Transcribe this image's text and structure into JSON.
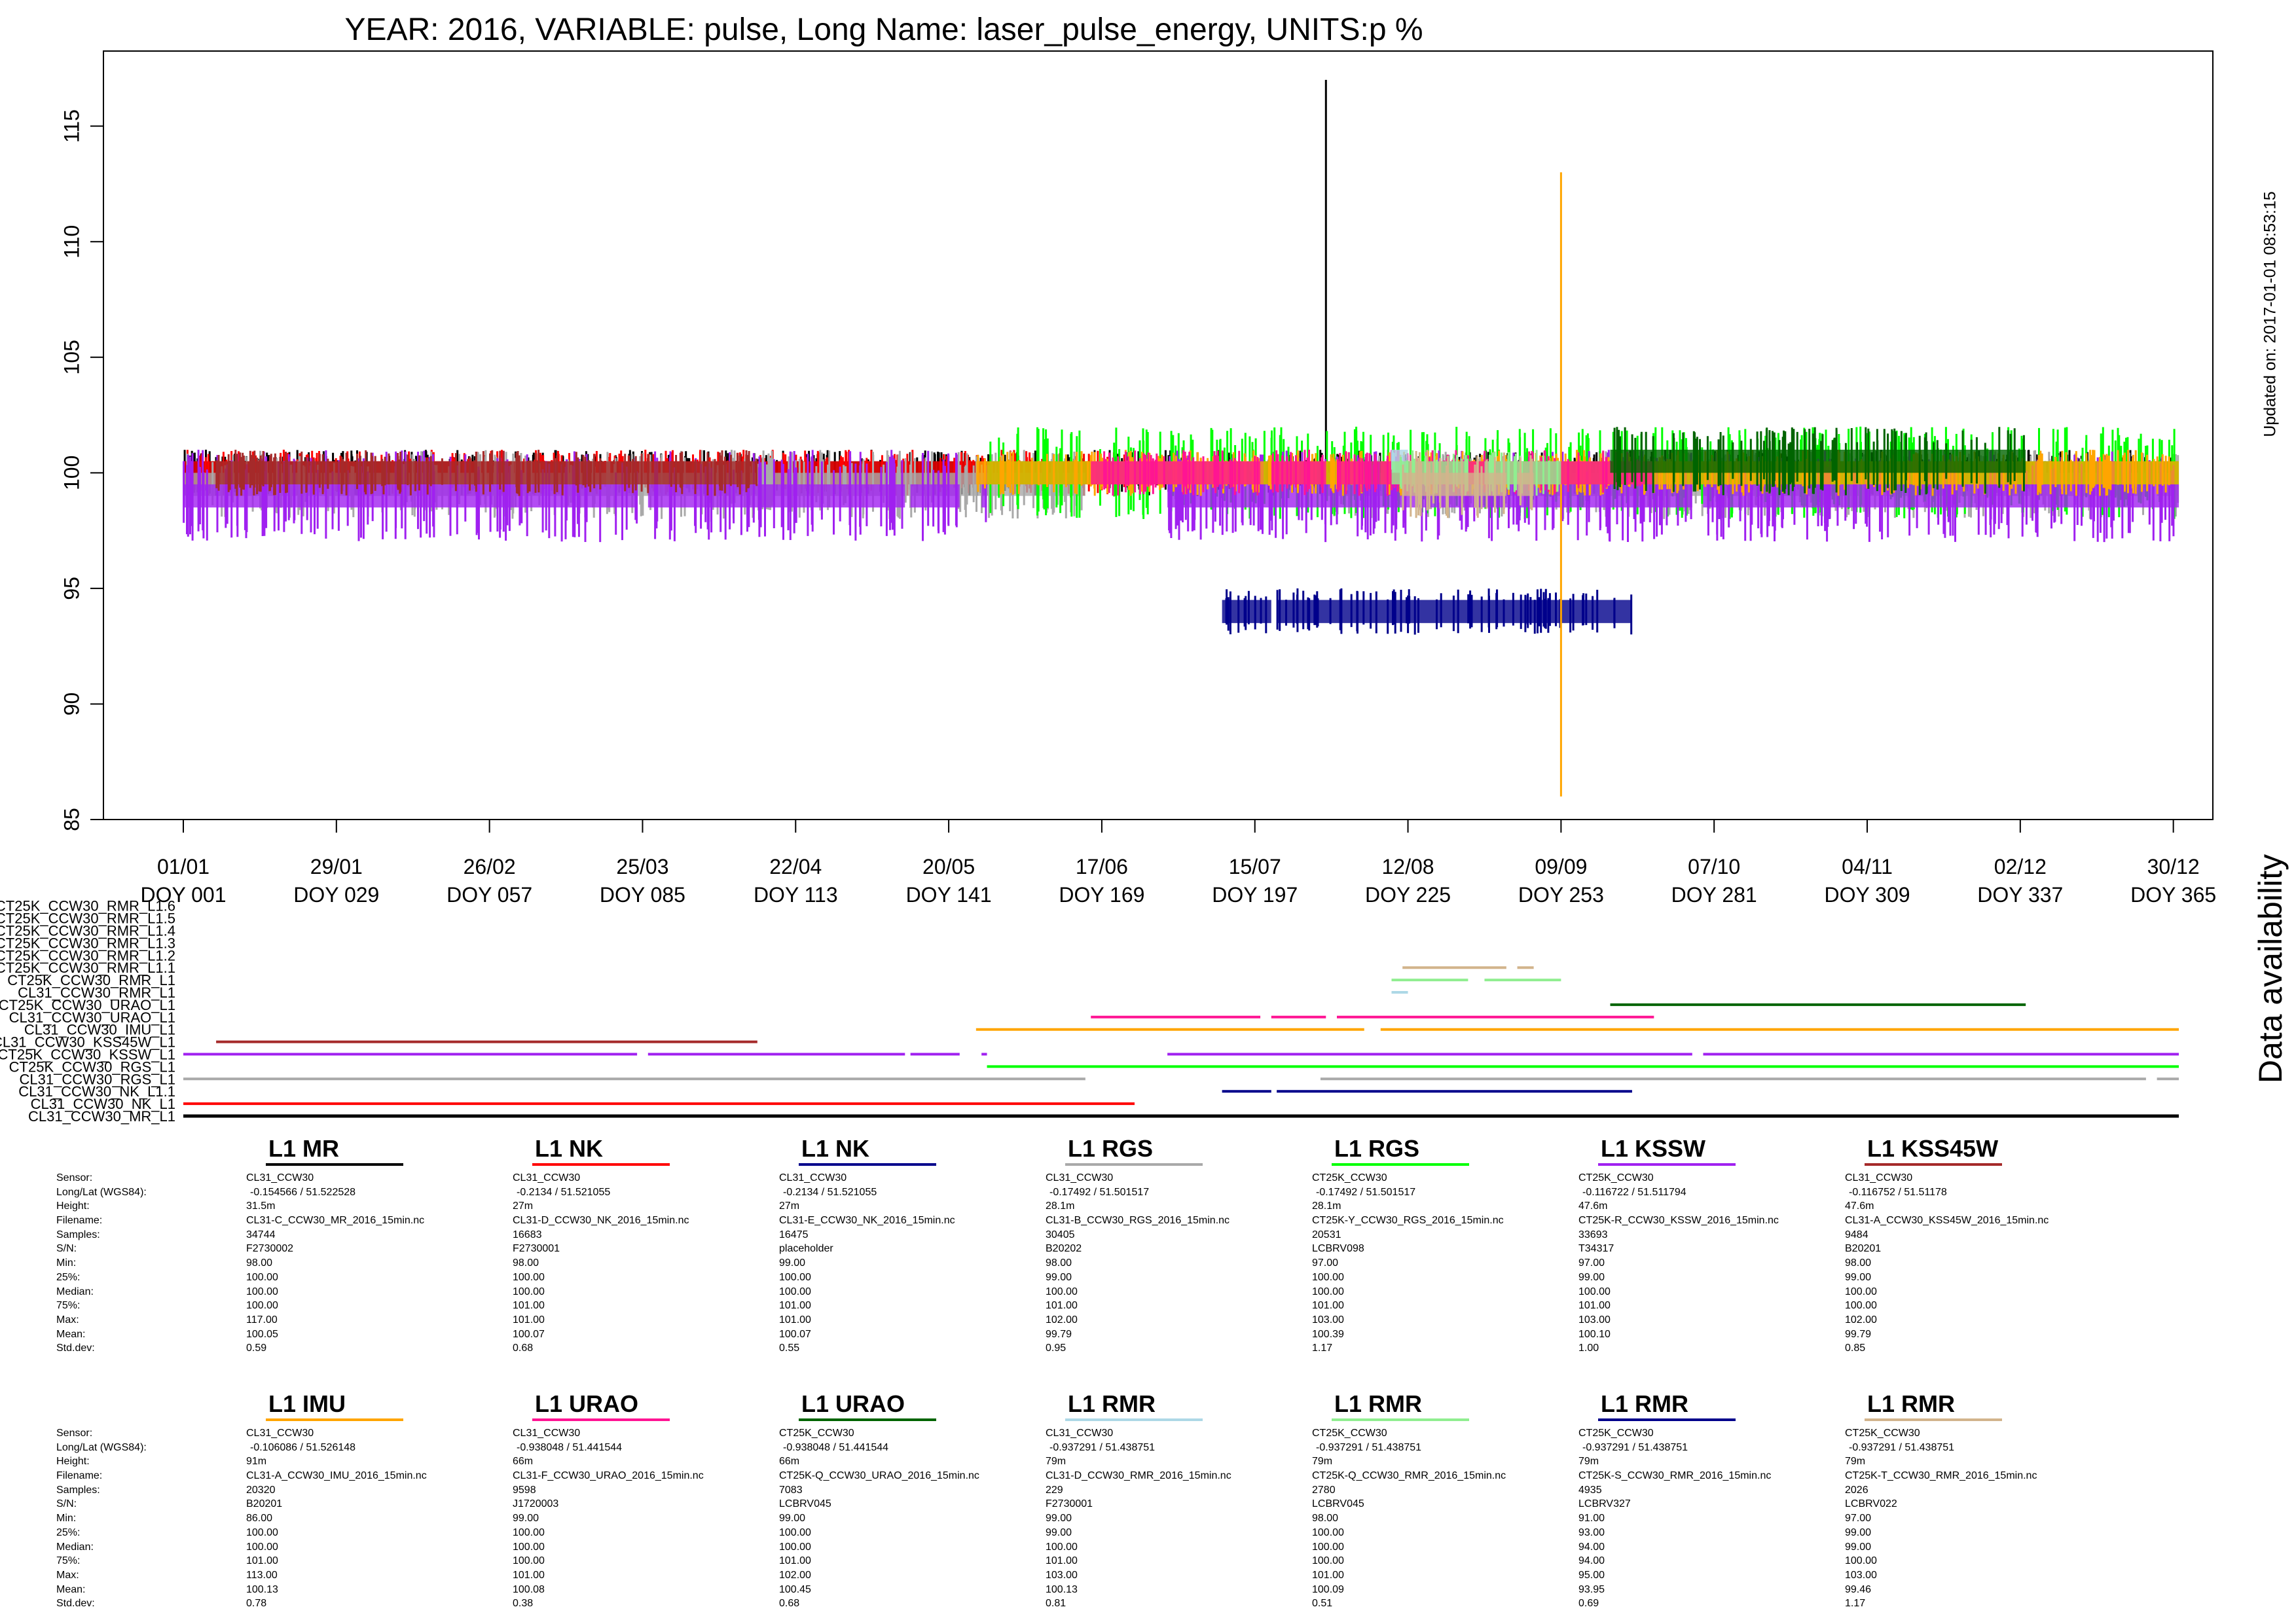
{
  "title": "YEAR: 2016, VARIABLE: pulse, Long Name: laser_pulse_energy, UNITS:p %",
  "updated": "Updated on: 2017-01-01 08:53:15",
  "availability_label": "Data availability",
  "chart_data": {
    "type": "line",
    "ylim": [
      85,
      117
    ],
    "yticks": [
      "85",
      "90",
      "95",
      "100",
      "105",
      "110",
      "115"
    ],
    "xlim": [
      1,
      366
    ],
    "xticks": [
      {
        "doy": 1,
        "date": "01/01",
        "label": "DOY 001"
      },
      {
        "doy": 29,
        "date": "29/01",
        "label": "DOY 029"
      },
      {
        "doy": 57,
        "date": "26/02",
        "label": "DOY 057"
      },
      {
        "doy": 85,
        "date": "25/03",
        "label": "DOY 085"
      },
      {
        "doy": 113,
        "date": "22/04",
        "label": "DOY 113"
      },
      {
        "doy": 141,
        "date": "20/05",
        "label": "DOY 141"
      },
      {
        "doy": 169,
        "date": "17/06",
        "label": "DOY 169"
      },
      {
        "doy": 197,
        "date": "15/07",
        "label": "DOY 197"
      },
      {
        "doy": 225,
        "date": "12/08",
        "label": "DOY 225"
      },
      {
        "doy": 253,
        "date": "09/09",
        "label": "DOY 253"
      },
      {
        "doy": 281,
        "date": "07/10",
        "label": "DOY 281"
      },
      {
        "doy": 309,
        "date": "04/11",
        "label": "DOY 309"
      },
      {
        "doy": 337,
        "date": "02/12",
        "label": "DOY 337"
      },
      {
        "doy": 365,
        "date": "30/12",
        "label": "DOY 365"
      }
    ],
    "series": [
      {
        "color": "#000000",
        "segments": [
          [
            1,
            366
          ]
        ],
        "low": 99,
        "high": 101,
        "spike": [
          210,
          99,
          117
        ]
      },
      {
        "color": "#ff0000",
        "segments": [
          [
            1,
            175
          ]
        ],
        "low": 99,
        "high": 101
      },
      {
        "color": "#00008b",
        "segments": [
          [
            191,
            200
          ],
          [
            201,
            266
          ]
        ],
        "low": 93,
        "high": 95
      },
      {
        "color": "#a9a9a9",
        "segments": [
          [
            1,
            166
          ],
          [
            209,
            360
          ],
          [
            362,
            366
          ]
        ],
        "low": 98,
        "high": 101
      },
      {
        "color": "#00ff00",
        "segments": [
          [
            148,
            366
          ]
        ],
        "low": 98,
        "high": 102
      },
      {
        "color": "#a020f0",
        "segments": [
          [
            1,
            84
          ],
          [
            86,
            133
          ],
          [
            134,
            143
          ],
          [
            147,
            148
          ],
          [
            181,
            277
          ],
          [
            279,
            366
          ]
        ],
        "low": 97,
        "high": 101
      },
      {
        "color": "#a52a2a",
        "segments": [
          [
            7,
            106
          ]
        ],
        "low": 99,
        "high": 101
      },
      {
        "color": "#ffa500",
        "segments": [
          [
            146,
            217
          ],
          [
            220,
            366
          ]
        ],
        "low": 99,
        "high": 101,
        "spike": [
          253,
          86,
          113
        ]
      },
      {
        "color": "#ff1493",
        "segments": [
          [
            167,
            198
          ],
          [
            200,
            210
          ],
          [
            212,
            270
          ]
        ],
        "low": 99,
        "high": 101
      },
      {
        "color": "#006400",
        "segments": [
          [
            262,
            338
          ]
        ],
        "low": 99,
        "high": 102
      },
      {
        "color": "#add8e6",
        "segments": [
          [
            222,
            225
          ]
        ],
        "low": 100,
        "high": 101
      },
      {
        "color": "#90ee90",
        "segments": [
          [
            222,
            236
          ],
          [
            239,
            253
          ]
        ],
        "low": 99,
        "high": 101
      },
      {
        "color": "#d2b48c",
        "segments": [
          [
            224,
            243
          ],
          [
            245,
            248
          ]
        ],
        "low": 98,
        "high": 101
      }
    ]
  },
  "availability": {
    "rows": [
      {
        "name": "CL31_CCW30_MR_L1",
        "color": "#000000"
      },
      {
        "name": "CL31_CCW30_NK_L1",
        "color": "#ff0000"
      },
      {
        "name": "CL31_CCW30_NK_L1.1",
        "color": "#00008b"
      },
      {
        "name": "CL31_CCW30_RGS_L1",
        "color": "#a9a9a9"
      },
      {
        "name": "CT25K_CCW30_RGS_L1",
        "color": "#00ff00"
      },
      {
        "name": "CT25K_CCW30_KSSW_L1",
        "color": "#a020f0"
      },
      {
        "name": "CL31_CCW30_KSS45W_L1",
        "color": "#a52a2a"
      },
      {
        "name": "CL31_CCW30_IMU_L1",
        "color": "#ffa500"
      },
      {
        "name": "CL31_CCW30_URAO_L1",
        "color": "#ff1493"
      },
      {
        "name": "CT25K_CCW30_URAO_L1",
        "color": "#006400"
      },
      {
        "name": "CL31_CCW30_RMR_L1",
        "color": "#add8e6"
      },
      {
        "name": "CT25K_CCW30_RMR_L1",
        "color": "#90ee90"
      },
      {
        "name": "CT25K_CCW30_RMR_L1.1",
        "color": "#00008b"
      },
      {
        "name": "CT25K_CCW30_RMR_L1.2",
        "color": "#d2b48c"
      },
      {
        "name": "CT25K_CCW30_RMR_L1.3",
        "color": "#000000"
      },
      {
        "name": "CT25K_CCW30_RMR_L1.4",
        "color": "#000000"
      },
      {
        "name": "CT25K_CCW30_RMR_L1.5",
        "color": "#000000"
      },
      {
        "name": "CT25K_CCW30_RMR_L1.6",
        "color": "#000000"
      }
    ]
  },
  "stats_labels": [
    "Sensor:",
    "Long/Lat (WGS84):",
    "Height:",
    "Filename:",
    "Samples:",
    "S/N:",
    "Min:",
    "25%:",
    "Median:",
    "75%:",
    "Max:",
    "Mean:",
    "Std.dev:"
  ],
  "stats_blocks": [
    {
      "title": "L1 MR",
      "color": "#000000",
      "values": [
        "CL31_CCW30",
        "-0.154566 / 51.522528",
        "31.5m",
        "CL31-C_CCW30_MR_2016_15min.nc",
        "34744",
        "F2730002",
        "98.00",
        "100.00",
        "100.00",
        "100.00",
        "117.00",
        "100.05",
        "0.59"
      ]
    },
    {
      "title": "L1 NK",
      "color": "#ff0000",
      "values": [
        "CL31_CCW30",
        "-0.2134 / 51.521055",
        "27m",
        "CL31-D_CCW30_NK_2016_15min.nc",
        "16683",
        "F2730001",
        "98.00",
        "100.00",
        "100.00",
        "101.00",
        "101.00",
        "100.07",
        "0.68"
      ]
    },
    {
      "title": "L1 NK",
      "color": "#00008b",
      "values": [
        "CL31_CCW30",
        "-0.2134 / 51.521055",
        "27m",
        "CL31-E_CCW30_NK_2016_15min.nc",
        "16475",
        "placeholder",
        "99.00",
        "100.00",
        "100.00",
        "101.00",
        "101.00",
        "100.07",
        "0.55"
      ]
    },
    {
      "title": "L1 RGS",
      "color": "#a9a9a9",
      "values": [
        "CL31_CCW30",
        "-0.17492 / 51.501517",
        "28.1m",
        "CL31-B_CCW30_RGS_2016_15min.nc",
        "30405",
        "B20202",
        "98.00",
        "99.00",
        "100.00",
        "101.00",
        "102.00",
        "99.79",
        "0.95"
      ]
    },
    {
      "title": "L1 RGS",
      "color": "#00ff00",
      "values": [
        "CT25K_CCW30",
        "-0.17492 / 51.501517",
        "28.1m",
        "CT25K-Y_CCW30_RGS_2016_15min.nc",
        "20531",
        "LCBRV098",
        "97.00",
        "100.00",
        "100.00",
        "101.00",
        "103.00",
        "100.39",
        "1.17"
      ]
    },
    {
      "title": "L1 KSSW",
      "color": "#a020f0",
      "values": [
        "CT25K_CCW30",
        "-0.116722 / 51.511794",
        "47.6m",
        "CT25K-R_CCW30_KSSW_2016_15min.nc",
        "33693",
        "T34317",
        "97.00",
        "99.00",
        "100.00",
        "101.00",
        "103.00",
        "100.10",
        "1.00"
      ]
    },
    {
      "title": "L1 KSS45W",
      "color": "#a52a2a",
      "values": [
        "CL31_CCW30",
        "-0.116752 / 51.51178",
        "47.6m",
        "CL31-A_CCW30_KSS45W_2016_15min.nc",
        "9484",
        "B20201",
        "98.00",
        "99.00",
        "100.00",
        "100.00",
        "102.00",
        "99.79",
        "0.85"
      ]
    },
    {
      "title": "L1 IMU",
      "color": "#ffa500",
      "values": [
        "CL31_CCW30",
        "-0.106086 / 51.526148",
        "91m",
        "CL31-A_CCW30_IMU_2016_15min.nc",
        "20320",
        "B20201",
        "86.00",
        "100.00",
        "100.00",
        "101.00",
        "113.00",
        "100.13",
        "0.78"
      ]
    },
    {
      "title": "L1 URAO",
      "color": "#ff1493",
      "values": [
        "CL31_CCW30",
        "-0.938048 / 51.441544",
        "66m",
        "CL31-F_CCW30_URAO_2016_15min.nc",
        "9598",
        "J1720003",
        "99.00",
        "100.00",
        "100.00",
        "100.00",
        "101.00",
        "100.08",
        "0.38"
      ]
    },
    {
      "title": "L1 URAO",
      "color": "#006400",
      "values": [
        "CT25K_CCW30",
        "-0.938048 / 51.441544",
        "66m",
        "CT25K-Q_CCW30_URAO_2016_15min.nc",
        "7083",
        "LCBRV045",
        "99.00",
        "100.00",
        "100.00",
        "101.00",
        "102.00",
        "100.45",
        "0.68"
      ]
    },
    {
      "title": "L1 RMR",
      "color": "#add8e6",
      "values": [
        "CL31_CCW30",
        "-0.937291 / 51.438751",
        "79m",
        "CL31-D_CCW30_RMR_2016_15min.nc",
        "229",
        "F2730001",
        "99.00",
        "99.00",
        "100.00",
        "101.00",
        "103.00",
        "100.13",
        "0.81"
      ]
    },
    {
      "title": "L1 RMR",
      "color": "#90ee90",
      "values": [
        "CT25K_CCW30",
        "-0.937291 / 51.438751",
        "79m",
        "CT25K-Q_CCW30_RMR_2016_15min.nc",
        "2780",
        "LCBRV045",
        "98.00",
        "100.00",
        "100.00",
        "100.00",
        "101.00",
        "100.09",
        "0.51"
      ]
    },
    {
      "title": "L1 RMR",
      "color": "#00008b",
      "values": [
        "CT25K_CCW30",
        "-0.937291 / 51.438751",
        "79m",
        "CT25K-S_CCW30_RMR_2016_15min.nc",
        "4935",
        "LCBRV327",
        "91.00",
        "93.00",
        "94.00",
        "94.00",
        "95.00",
        "93.95",
        "0.69"
      ]
    },
    {
      "title": "L1 RMR",
      "color": "#d2b48c",
      "values": [
        "CT25K_CCW30",
        "-0.937291 / 51.438751",
        "79m",
        "CT25K-T_CCW30_RMR_2016_15min.nc",
        "2026",
        "LCBRV022",
        "97.00",
        "99.00",
        "99.00",
        "100.00",
        "103.00",
        "99.46",
        "1.17"
      ]
    }
  ]
}
